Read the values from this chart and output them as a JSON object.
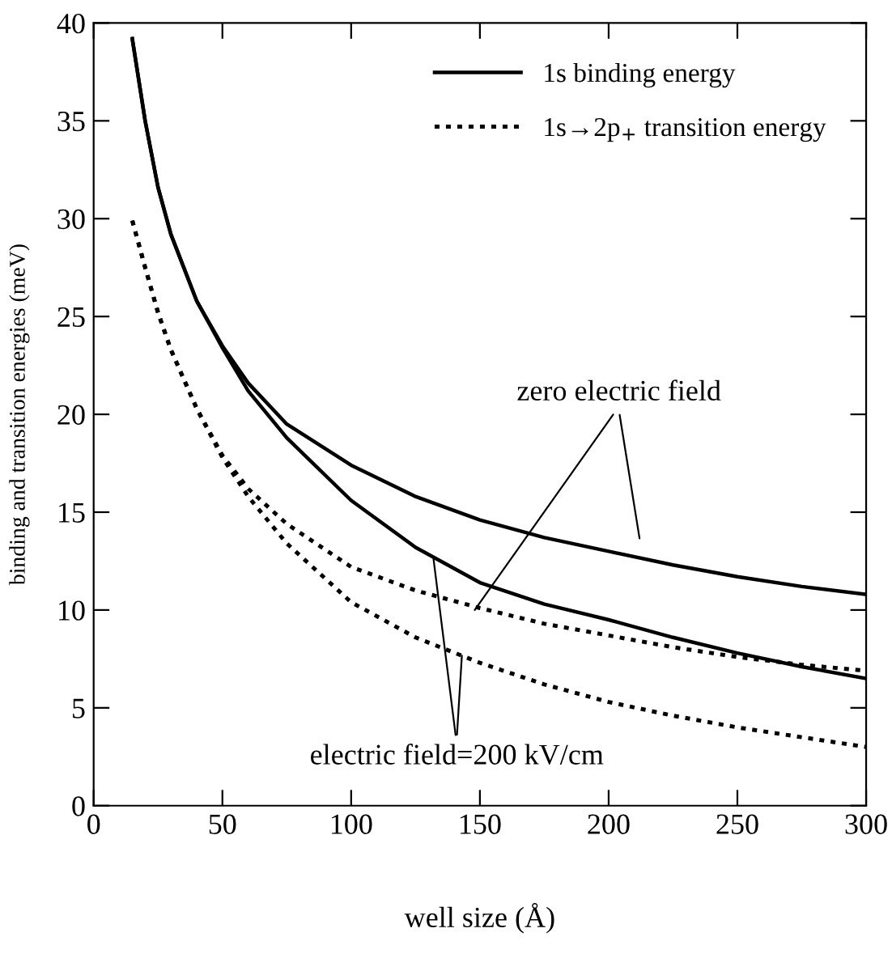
{
  "chart_data": {
    "type": "line",
    "xlabel": "well size (Å)",
    "ylabel": "binding and transition energies (meV)",
    "x": [
      15,
      20,
      25,
      30,
      40,
      50,
      60,
      75,
      100,
      125,
      150,
      175,
      200,
      225,
      250,
      275,
      300
    ],
    "series": [
      {
        "name": "1s binding energy",
        "color": "#000000",
        "line_style": "solid",
        "values": [
          39.2,
          35.0,
          31.6,
          29.2,
          25.8,
          23.5,
          21.6,
          19.5,
          17.4,
          15.8,
          14.6,
          13.7,
          13.0,
          12.3,
          11.7,
          11.2,
          10.8
        ]
      },
      {
        "color": "#000000",
        "line_style": "solid",
        "values": [
          39.2,
          35.0,
          31.6,
          29.2,
          25.8,
          23.4,
          21.2,
          18.8,
          15.6,
          13.2,
          11.4,
          10.3,
          9.5,
          8.6,
          7.8,
          7.1,
          6.5
        ]
      },
      {
        "name": "1s→2p$_{+}$ transition energy",
        "color": "#000000",
        "line_style": "dotted",
        "values": [
          29.9,
          27.5,
          25.2,
          23.3,
          20.3,
          17.9,
          16.2,
          14.4,
          12.2,
          11.0,
          10.1,
          9.3,
          8.7,
          8.1,
          7.6,
          7.2,
          6.9
        ]
      },
      {
        "color": "#000000",
        "line_style": "dotted",
        "values": [
          29.9,
          27.5,
          25.2,
          23.3,
          20.3,
          17.8,
          15.8,
          13.4,
          10.4,
          8.6,
          7.3,
          6.2,
          5.3,
          4.6,
          4.0,
          3.5,
          3.0
        ]
      }
    ],
    "annotations": [
      {
        "text": "zero electric field",
        "x": 148,
        "y": 10.0
      },
      {
        "text": "electric field=200 kV/cm",
        "x": 132,
        "y": 12.6
      }
    ],
    "xlim": [
      0,
      300
    ],
    "xticks": [
      0,
      50,
      100,
      150,
      200,
      250,
      300
    ],
    "ylim": [
      0,
      40
    ],
    "yticks": [
      0,
      5,
      10,
      15,
      20,
      25,
      30,
      35,
      40
    ],
    "legend": "top right",
    "grid": false,
    "marker": "none"
  }
}
